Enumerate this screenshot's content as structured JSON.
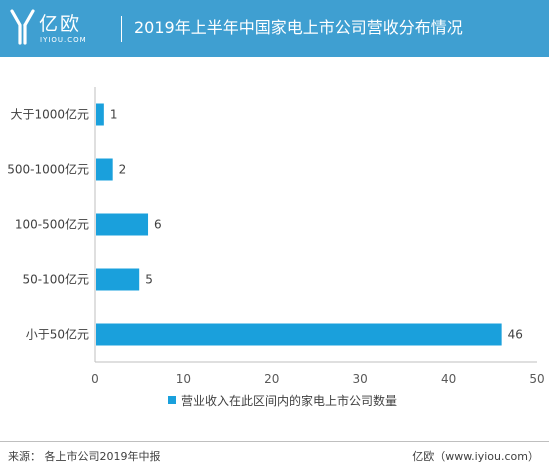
{
  "header": {
    "brand_name": "亿欧",
    "brand_domain": "IYIOU.COM",
    "title": "2019年上半年中国家电上市公司营收分布情况"
  },
  "colors": {
    "header_bg": "#3f9fd1",
    "bar": "#1aa0dc",
    "axis": "#bfbfbf"
  },
  "chart_data": {
    "type": "bar",
    "orientation": "horizontal",
    "categories": [
      "大于1000亿元",
      "500-1000亿元",
      "100-500亿元",
      "50-100亿元",
      "小于50亿元"
    ],
    "series": [
      {
        "name": "营业收入在此区间内的家电上市公司数量",
        "values": [
          1,
          2,
          6,
          5,
          46
        ]
      }
    ],
    "xlim": [
      0,
      50
    ],
    "xticks": [
      0,
      10,
      20,
      30,
      40,
      50
    ],
    "grid": false,
    "legend": "bottom",
    "data_labels": true
  },
  "footer": {
    "source": "来源：   各上市公司2019年中报",
    "site": "亿欧（www.iyiou.com）"
  }
}
